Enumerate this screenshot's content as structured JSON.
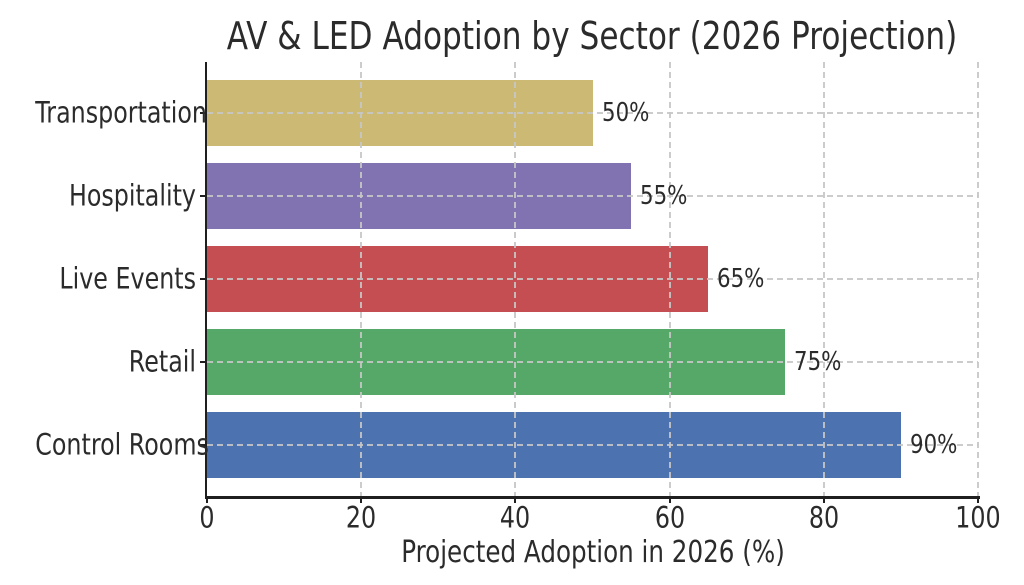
{
  "chart_data": {
    "type": "bar",
    "orientation": "horizontal",
    "title": "AV & LED Adoption by Sector (2026 Projection)",
    "xlabel": "Projected Adoption in 2026 (%)",
    "ylabel": "",
    "categories_top_to_bottom": [
      "Transportation",
      "Hospitality",
      "Live Events",
      "Retail",
      "Control Rooms"
    ],
    "values": [
      50,
      55,
      65,
      75,
      90
    ],
    "value_labels": [
      "50%",
      "55%",
      "65%",
      "75%",
      "90%"
    ],
    "bar_colors": [
      "#ccb974",
      "#8172b2",
      "#c44e52",
      "#55a868",
      "#4c72b0"
    ],
    "xlim": [
      0,
      100
    ],
    "xticks": [
      0,
      20,
      40,
      60,
      80,
      100
    ],
    "grid": {
      "visible": true,
      "line_style": "dashed",
      "axis": "both"
    },
    "legend_position": "none"
  },
  "style": {
    "background": "#ffffff",
    "text_color": "#2b2b2b",
    "spine_color": "#1f1f1f",
    "grid_color": "#c6c6c6"
  }
}
